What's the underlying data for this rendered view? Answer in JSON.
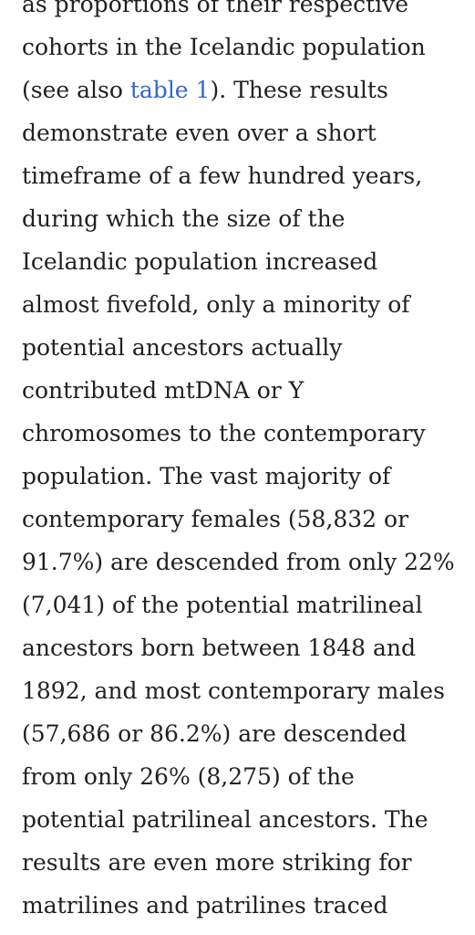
{
  "article": {
    "lines": [
      "as proportions of their respective",
      "cohorts in the Icelandic population",
      {
        "before": "(see also ",
        "link": "table 1",
        "after": "). These results"
      },
      "demonstrate even over a short",
      "timeframe of a few hundred years,",
      "during which the size of the",
      "Icelandic population increased",
      "almost fivefold, only a minority of",
      "potential ancestors actually",
      "contributed mtDNA or Y",
      "chromosomes to the contemporary",
      "population. The vast majority of",
      "contemporary females (58,832 or",
      "91.7%) are descended from only 22%",
      "(7,041) of the potential matrilineal",
      "ancestors born between 1848 and",
      "1892, and most contemporary males",
      "(57,686 or 86.2%) are descended",
      "from only 26% (8,275) of the",
      "potential patrilineal ancestors. The",
      "results are even more striking for",
      "matrilines and patrilines traced"
    ]
  }
}
